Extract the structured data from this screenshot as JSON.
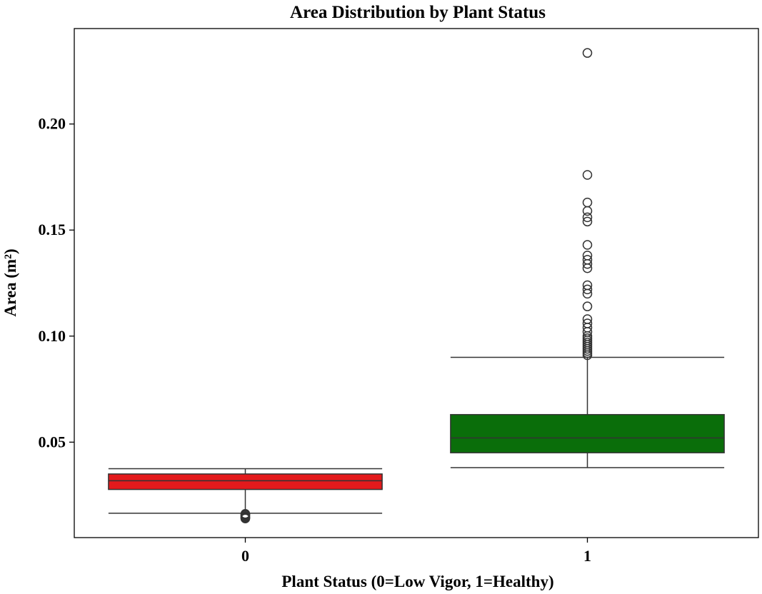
{
  "chart_data": {
    "type": "box",
    "title": "Area Distribution by Plant Status",
    "xlabel": "Plant Status (0=Low Vigor, 1=Healthy)",
    "ylabel": "Area (m²)",
    "ylim": [
      0.005,
      0.245
    ],
    "yticks": [
      {
        "value": 0.05,
        "label": "0.05"
      },
      {
        "value": 0.1,
        "label": "0.10"
      },
      {
        "value": 0.15,
        "label": "0.15"
      },
      {
        "value": 0.2,
        "label": "0.20"
      }
    ],
    "grid": false,
    "legend": "none",
    "boxes": [
      {
        "category": "0",
        "color": "#e31a1c",
        "whisker_low": 0.0165,
        "q1": 0.0277,
        "median": 0.0318,
        "q3": 0.035,
        "whisker_high": 0.0375,
        "outliers": [
          0.0162,
          0.0158,
          0.0155,
          0.015,
          0.0146,
          0.0143,
          0.014
        ]
      },
      {
        "category": "1",
        "color": "#0a6e0a",
        "whisker_low": 0.038,
        "q1": 0.045,
        "median": 0.052,
        "q3": 0.063,
        "whisker_high": 0.09,
        "outliers": [
          0.2335,
          0.176,
          0.163,
          0.159,
          0.156,
          0.154,
          0.143,
          0.138,
          0.136,
          0.134,
          0.132,
          0.124,
          0.122,
          0.12,
          0.114,
          0.108,
          0.106,
          0.104,
          0.102,
          0.1,
          0.099,
          0.098,
          0.097,
          0.096,
          0.095,
          0.094,
          0.093,
          0.092,
          0.091
        ]
      }
    ]
  }
}
